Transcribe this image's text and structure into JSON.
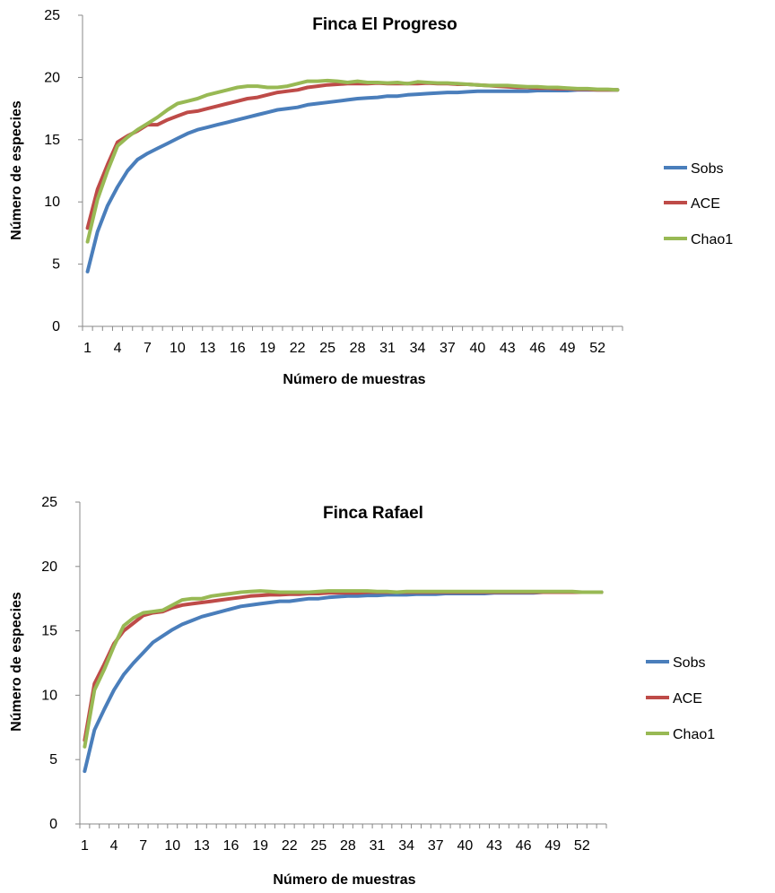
{
  "chart_data": [
    {
      "type": "line",
      "title": "Finca El Progreso",
      "xlabel": "Número de muestras",
      "ylabel": "Número de especies",
      "ylim": [
        0,
        25
      ],
      "yticks": [
        0,
        5,
        10,
        15,
        20,
        25
      ],
      "xlim": [
        1,
        54
      ],
      "xticks": [
        1,
        4,
        7,
        10,
        13,
        16,
        19,
        22,
        25,
        28,
        31,
        34,
        37,
        40,
        43,
        46,
        49,
        52
      ],
      "grid": false,
      "legend": "right",
      "x": [
        1,
        2,
        3,
        4,
        5,
        6,
        7,
        8,
        9,
        10,
        11,
        12,
        13,
        14,
        15,
        16,
        17,
        18,
        19,
        20,
        21,
        22,
        23,
        24,
        25,
        26,
        27,
        28,
        29,
        30,
        31,
        32,
        33,
        34,
        35,
        36,
        37,
        38,
        39,
        40,
        41,
        42,
        43,
        44,
        45,
        46,
        47,
        48,
        49,
        50,
        51,
        52,
        53,
        54
      ],
      "series": [
        {
          "name": "Sobs",
          "color": "#4a7ebb",
          "values": [
            4.4,
            7.6,
            9.7,
            11.2,
            12.5,
            13.4,
            13.9,
            14.3,
            14.7,
            15.1,
            15.5,
            15.8,
            16.0,
            16.2,
            16.4,
            16.6,
            16.8,
            17.0,
            17.2,
            17.4,
            17.5,
            17.6,
            17.8,
            17.9,
            18.0,
            18.1,
            18.2,
            18.3,
            18.35,
            18.4,
            18.5,
            18.5,
            18.6,
            18.65,
            18.7,
            18.75,
            18.8,
            18.8,
            18.85,
            18.9,
            18.9,
            18.9,
            18.9,
            18.9,
            18.9,
            18.95,
            18.95,
            18.95,
            18.95,
            19.0,
            19.0,
            19.0,
            19.0,
            19.0
          ]
        },
        {
          "name": "ACE",
          "color": "#be4b48",
          "values": [
            7.9,
            11.0,
            13.0,
            14.8,
            15.3,
            15.7,
            16.2,
            16.2,
            16.6,
            16.9,
            17.2,
            17.3,
            17.5,
            17.7,
            17.9,
            18.1,
            18.3,
            18.4,
            18.6,
            18.8,
            18.9,
            19.0,
            19.2,
            19.3,
            19.4,
            19.45,
            19.5,
            19.5,
            19.5,
            19.55,
            19.5,
            19.5,
            19.5,
            19.5,
            19.55,
            19.5,
            19.5,
            19.45,
            19.45,
            19.4,
            19.35,
            19.3,
            19.25,
            19.2,
            19.2,
            19.15,
            19.15,
            19.1,
            19.1,
            19.05,
            19.05,
            19.0,
            19.0,
            19.0
          ]
        },
        {
          "name": "Chao1",
          "color": "#98b954",
          "values": [
            6.8,
            10.2,
            12.5,
            14.5,
            15.2,
            15.8,
            16.3,
            16.8,
            17.4,
            17.9,
            18.1,
            18.3,
            18.6,
            18.8,
            19.0,
            19.2,
            19.3,
            19.3,
            19.2,
            19.2,
            19.3,
            19.5,
            19.7,
            19.7,
            19.75,
            19.7,
            19.6,
            19.7,
            19.6,
            19.6,
            19.55,
            19.6,
            19.5,
            19.65,
            19.6,
            19.55,
            19.55,
            19.5,
            19.45,
            19.4,
            19.35,
            19.35,
            19.35,
            19.3,
            19.25,
            19.25,
            19.2,
            19.2,
            19.15,
            19.1,
            19.1,
            19.05,
            19.05,
            19.0
          ]
        }
      ]
    },
    {
      "type": "line",
      "title": "Finca Rafael",
      "xlabel": "Número de muestras",
      "ylabel": "Número de especies",
      "ylim": [
        0,
        25
      ],
      "yticks": [
        0,
        5,
        10,
        15,
        20,
        25
      ],
      "xlim": [
        1,
        54
      ],
      "xticks": [
        1,
        4,
        7,
        10,
        13,
        16,
        19,
        22,
        25,
        28,
        31,
        34,
        37,
        40,
        43,
        46,
        49,
        52
      ],
      "grid": false,
      "legend": "right",
      "x": [
        1,
        2,
        3,
        4,
        5,
        6,
        7,
        8,
        9,
        10,
        11,
        12,
        13,
        14,
        15,
        16,
        17,
        18,
        19,
        20,
        21,
        22,
        23,
        24,
        25,
        26,
        27,
        28,
        29,
        30,
        31,
        32,
        33,
        34,
        35,
        36,
        37,
        38,
        39,
        40,
        41,
        42,
        43,
        44,
        45,
        46,
        47,
        48,
        49,
        50,
        51,
        52,
        53,
        54
      ],
      "series": [
        {
          "name": "Sobs",
          "color": "#4a7ebb",
          "values": [
            4.1,
            7.3,
            8.9,
            10.4,
            11.6,
            12.5,
            13.3,
            14.1,
            14.6,
            15.1,
            15.5,
            15.8,
            16.1,
            16.3,
            16.5,
            16.7,
            16.9,
            17.0,
            17.1,
            17.2,
            17.3,
            17.3,
            17.4,
            17.5,
            17.5,
            17.6,
            17.65,
            17.7,
            17.7,
            17.75,
            17.75,
            17.8,
            17.8,
            17.8,
            17.85,
            17.85,
            17.85,
            17.9,
            17.9,
            17.9,
            17.9,
            17.9,
            17.95,
            17.95,
            17.95,
            17.95,
            17.95,
            18.0,
            18.0,
            18.0,
            18.0,
            18.0,
            18.0,
            18.0
          ]
        },
        {
          "name": "ACE",
          "color": "#be4b48",
          "values": [
            6.5,
            10.9,
            12.4,
            14.0,
            15.0,
            15.6,
            16.2,
            16.4,
            16.5,
            16.8,
            17.0,
            17.1,
            17.2,
            17.3,
            17.4,
            17.5,
            17.6,
            17.7,
            17.75,
            17.8,
            17.8,
            17.85,
            17.85,
            17.9,
            17.9,
            17.95,
            17.95,
            17.95,
            17.95,
            18.0,
            18.0,
            18.0,
            18.0,
            18.0,
            18.0,
            18.0,
            18.0,
            18.0,
            18.0,
            18.0,
            18.0,
            18.0,
            18.0,
            18.0,
            18.0,
            18.0,
            18.0,
            18.0,
            18.0,
            18.0,
            18.0,
            18.0,
            18.0,
            18.0
          ]
        },
        {
          "name": "Chao1",
          "color": "#98b954",
          "values": [
            6.0,
            10.4,
            12.0,
            13.8,
            15.4,
            16.0,
            16.4,
            16.5,
            16.6,
            17.0,
            17.4,
            17.5,
            17.5,
            17.7,
            17.8,
            17.9,
            18.0,
            18.05,
            18.1,
            18.05,
            18.0,
            18.0,
            18.0,
            18.0,
            18.05,
            18.1,
            18.1,
            18.1,
            18.1,
            18.1,
            18.05,
            18.05,
            18.0,
            18.05,
            18.05,
            18.05,
            18.05,
            18.05,
            18.05,
            18.05,
            18.05,
            18.05,
            18.05,
            18.05,
            18.05,
            18.05,
            18.05,
            18.05,
            18.05,
            18.05,
            18.05,
            18.0,
            18.0,
            18.0
          ]
        }
      ]
    }
  ]
}
